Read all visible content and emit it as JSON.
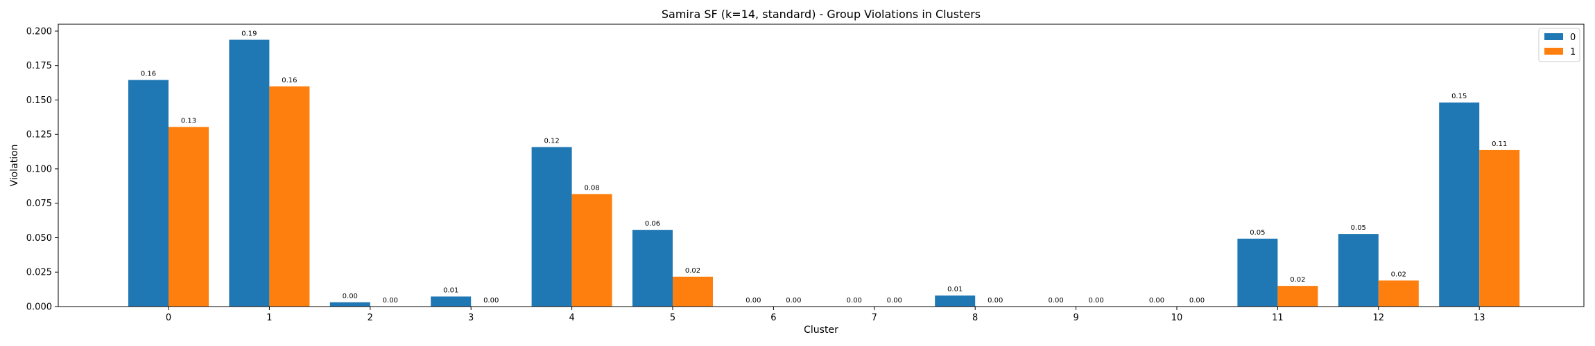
{
  "chart_data": {
    "type": "bar",
    "title": "Samira SF (k=14, standard) - Group Violations in Clusters",
    "xlabel": "Cluster",
    "ylabel": "Violation",
    "categories": [
      "0",
      "1",
      "2",
      "3",
      "4",
      "5",
      "6",
      "7",
      "8",
      "9",
      "10",
      "11",
      "12",
      "13"
    ],
    "ylim": [
      0,
      0.205
    ],
    "yticks": [
      0.0,
      0.025,
      0.05,
      0.075,
      0.1,
      0.125,
      0.15,
      0.175,
      0.2
    ],
    "ytick_labels": [
      "0.000",
      "0.025",
      "0.050",
      "0.075",
      "0.100",
      "0.125",
      "0.150",
      "0.175",
      "0.200"
    ],
    "legend_position": "top-right",
    "series": [
      {
        "name": "0",
        "color": "#1f77b4",
        "values": [
          0.1645,
          0.1937,
          0.0031,
          0.0073,
          0.1158,
          0.0557,
          0.0,
          0.0,
          0.008,
          0.0,
          0.0,
          0.0493,
          0.0527,
          0.1481
        ],
        "labels": [
          "0.16",
          "0.19",
          "0.00",
          "0.01",
          "0.12",
          "0.06",
          "0.00",
          "0.00",
          "0.01",
          "0.00",
          "0.00",
          "0.05",
          "0.05",
          "0.15"
        ]
      },
      {
        "name": "1",
        "color": "#ff7f0e",
        "values": [
          0.1304,
          0.1599,
          0.0,
          0.0,
          0.0817,
          0.0217,
          0.0,
          0.0,
          0.0,
          0.0,
          0.0,
          0.015,
          0.0189,
          0.1136
        ],
        "labels": [
          "0.13",
          "0.16",
          "0.00",
          "0.00",
          "0.08",
          "0.02",
          "0.00",
          "0.00",
          "0.00",
          "0.00",
          "0.00",
          "0.02",
          "0.02",
          "0.11"
        ]
      }
    ]
  }
}
